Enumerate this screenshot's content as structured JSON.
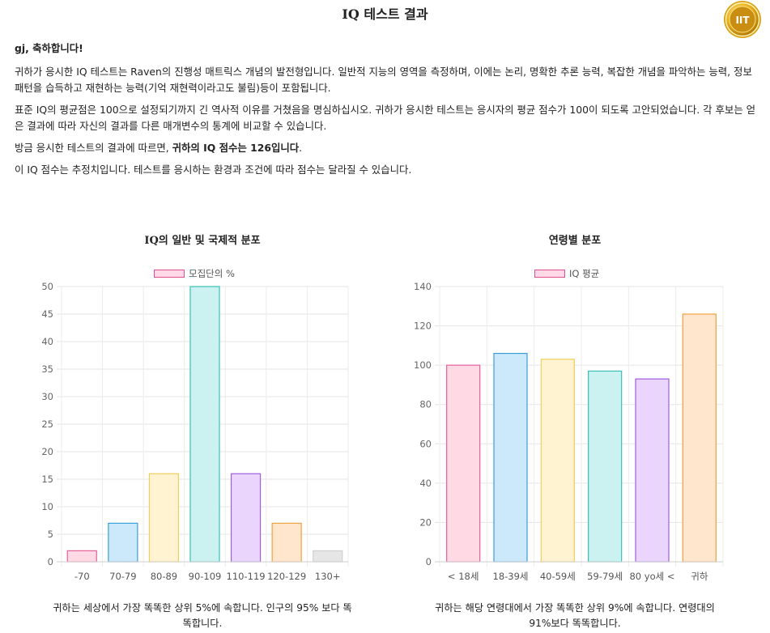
{
  "page": {
    "title": "IQ 테스트 결과",
    "badge_text": "IIT"
  },
  "intro": {
    "greeting": "gj, 축하합니다!",
    "p1": "귀하가 응시한 IQ 테스트는 Raven의 진행성 매트릭스 개념의 발전형입니다. 일반적 지능의 영역을 측정하며, 이에는 논리, 명확한 추론 능력, 복잡한 개념을 파악하는 능력, 정보 패턴을 습득하고 재현하는 능력(기억 재현력이라고도 불림)등이 포함됩니다.",
    "p2": "표준 IQ의 평균점은 100으로 설정되기까지 긴 역사적 이유를 거쳤음을 명심하십시오. 귀하가 응시한 테스트는 응시자의 평균 점수가 100이 되도록 고안되었습니다. 각 후보는 얻은 결과에 따라 자신의 결과를 다른 매개변수의 통계에 비교할 수 있습니다.",
    "p3_prefix": "방금 응시한 테스트의 결과에 따르면, ",
    "p3_bold": "귀하의 IQ 점수는 126입니다",
    "p3_suffix": ".",
    "p4": "이 IQ 점수는 추정치입니다. 테스트를 응시하는 환경과 조건에 따라 점수는 달라질 수 있습니다."
  },
  "chart_data": [
    {
      "type": "bar",
      "title": "IQ의 일반 및 국제적 분포",
      "legend": "모집단의 %",
      "legend_position": "top",
      "categories": [
        "-70",
        "70-79",
        "80-89",
        "90-109",
        "110-119",
        "120-129",
        "130+"
      ],
      "values": [
        2,
        7,
        16,
        50,
        16,
        7,
        2
      ],
      "ylim": [
        0,
        50
      ],
      "yticks": [
        0,
        5,
        10,
        15,
        20,
        25,
        30,
        35,
        40,
        45,
        50
      ],
      "grid": true,
      "colors": [
        {
          "fill": "#ffd9e4",
          "stroke": "#e8609a"
        },
        {
          "fill": "#cce8fb",
          "stroke": "#3a9fd9"
        },
        {
          "fill": "#fff3d1",
          "stroke": "#f2cd5c"
        },
        {
          "fill": "#cbf2f0",
          "stroke": "#3cbfb8"
        },
        {
          "fill": "#ead6fd",
          "stroke": "#9f5de0"
        },
        {
          "fill": "#ffe6cc",
          "stroke": "#f0a040"
        },
        {
          "fill": "#e6e6e6",
          "stroke": "#d0d0d0"
        }
      ],
      "caption": "귀하는 세상에서 가장 똑똑한 상위 5%에 속합니다. 인구의 95% 보다 똑똑합니다."
    },
    {
      "type": "bar",
      "title": "연령별 분포",
      "legend": "IQ 평균",
      "legend_position": "top",
      "categories": [
        "< 18세",
        "18-39세",
        "40-59세",
        "59-79세",
        "80 yo세 <",
        "귀하"
      ],
      "values": [
        100,
        106,
        103,
        97,
        93,
        126
      ],
      "ylim": [
        0,
        140
      ],
      "yticks": [
        0,
        20,
        40,
        60,
        80,
        100,
        120,
        140
      ],
      "grid": true,
      "colors": [
        {
          "fill": "#ffd9e4",
          "stroke": "#e8609a"
        },
        {
          "fill": "#cce8fb",
          "stroke": "#3a9fd9"
        },
        {
          "fill": "#fff3d1",
          "stroke": "#f2cd5c"
        },
        {
          "fill": "#cbf2f0",
          "stroke": "#3cbfb8"
        },
        {
          "fill": "#ead6fd",
          "stroke": "#9f5de0"
        },
        {
          "fill": "#ffe6cc",
          "stroke": "#f0a040"
        }
      ],
      "caption": "귀하는 해당 연령대에서 가장 똑똑한 상위 9%에 속합니다. 연령대의 91%보다 똑똑합니다."
    }
  ]
}
